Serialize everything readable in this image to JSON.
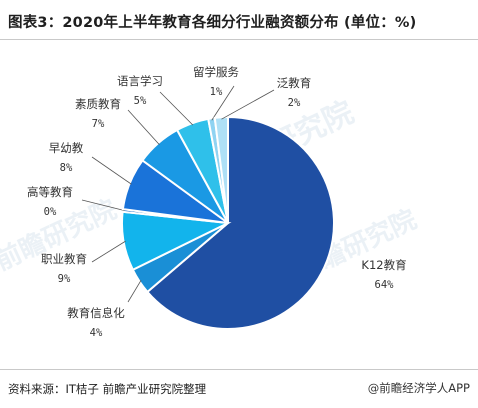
{
  "header": {
    "title": "图表3：2020年上半年教育各细分行业融资额分布 (单位：%)"
  },
  "chart_data": {
    "type": "pie",
    "title": "图表3：2020年上半年教育各细分行业融资额分布 (单位：%)",
    "slices": [
      {
        "label": "K12教育",
        "value": 64,
        "value_label": "64%",
        "color": "#1f4fa3"
      },
      {
        "label": "教育信息化",
        "value": 4,
        "value_label": "4%",
        "color": "#1a8fd6"
      },
      {
        "label": "职业教育",
        "value": 9,
        "value_label": "9%",
        "color": "#12b4ec"
      },
      {
        "label": "高等教育",
        "value": 0,
        "value_label": "0%",
        "color": "#1167c4"
      },
      {
        "label": "早幼教",
        "value": 8,
        "value_label": "8%",
        "color": "#1a73d9"
      },
      {
        "label": "素质教育",
        "value": 7,
        "value_label": "7%",
        "color": "#1a99e4"
      },
      {
        "label": "语言学习",
        "value": 5,
        "value_label": "5%",
        "color": "#2fc0ea"
      },
      {
        "label": "留学服务",
        "value": 1,
        "value_label": "1%",
        "color": "#8fd3f2"
      },
      {
        "label": "泛教育",
        "value": 2,
        "value_label": "2%",
        "color": "#aee0f6"
      }
    ]
  },
  "footer": {
    "source": "资料来源：IT桔子 前瞻产业研究院整理",
    "brand": "@前瞻经济学人APP"
  },
  "watermarks": [
    "前瞻产业研究院",
    "前瞻研究院",
    "前瞻研究院"
  ],
  "colors": {
    "leader_line": "#555555",
    "label_text": "#333333",
    "slice_border": "#ffffff"
  }
}
